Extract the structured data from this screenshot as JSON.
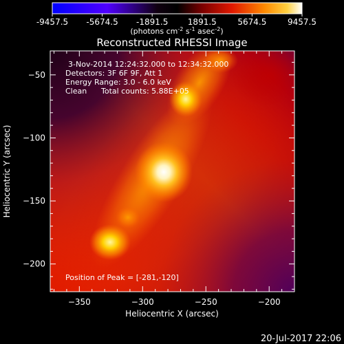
{
  "colorbar": {
    "ticks": [
      "-9457.5",
      "-5674.5",
      "-1891.5",
      "1891.5",
      "5674.5",
      "9457.5"
    ],
    "unit_main": "(photons cm",
    "unit_exp1": "-2",
    "unit_mid": " s",
    "unit_exp2": "-1",
    "unit_end": " asec",
    "unit_exp3": "-2",
    "unit_close": ")"
  },
  "title": "Reconstructed RHESSI Image",
  "annotations": {
    "time_range": "3-Nov-2014 12:24:32.000 to 12:34:32.000",
    "detectors": "Detectors: 3F 6F 9F, Att 1",
    "energy_range": "Energy Range: 3.0 - 6.0 keV",
    "method": "Clean",
    "total_counts": "Total counts: 5.88E+05",
    "peak_position": "Position of Peak = [-281,-120]"
  },
  "x_axis": {
    "label": "Heliocentric X (arcsec)",
    "range": [
      -373,
      -180
    ],
    "ticks": [
      -350,
      -300,
      -250,
      -200
    ],
    "tick_labels": [
      "−350",
      "−300",
      "−250",
      "−200"
    ]
  },
  "y_axis": {
    "label": "Heliocentric Y (arcsec)",
    "range": [
      -222,
      -31
    ],
    "ticks": [
      -50,
      -100,
      -150,
      -200
    ],
    "tick_labels": [
      "−50",
      "−100",
      "−150",
      "−200"
    ]
  },
  "footer_timestamp": "20-Jul-2017 22:06",
  "colors": {
    "background": "#000000",
    "axis": "#ffffff",
    "colormap": [
      "#0000ff",
      "#5a00ff",
      "#000000",
      "#5a0000",
      "#c00000",
      "#ff5000",
      "#ffb000",
      "#ffffff"
    ]
  }
}
